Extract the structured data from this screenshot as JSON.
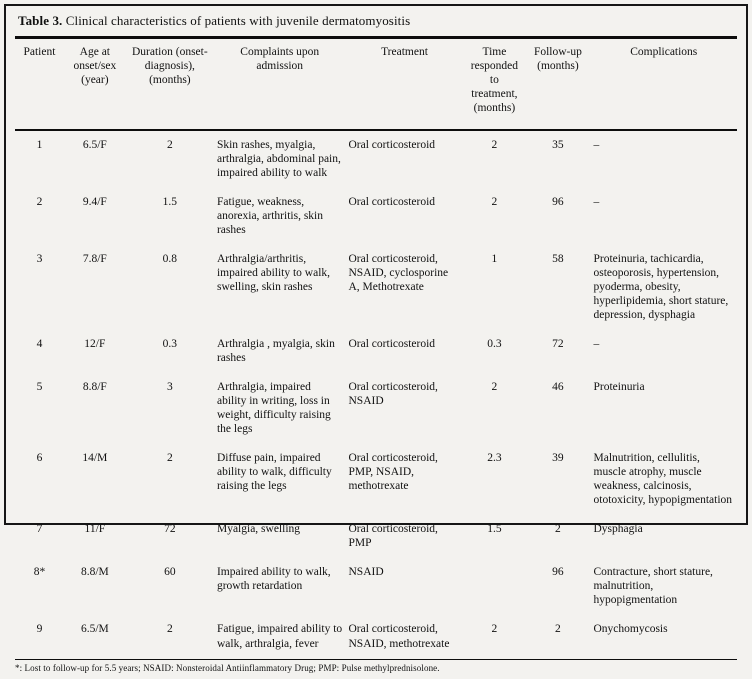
{
  "table": {
    "title_label": "Table 3.",
    "title_text": " Clinical characteristics of patients with juvenile dermatomyositis",
    "columns": [
      "Patient",
      "Age at onset/sex (year)",
      "Duration (onset-diagnosis), (months)",
      "Complaints upon admission",
      "Treatment",
      "Time responded to treatment, (months)",
      "Follow-up (months)",
      "Complications"
    ],
    "rows": [
      [
        "1",
        "6.5/F",
        "2",
        "Skin rashes, myalgia, arthralgia, abdominal pain, impaired ability to walk",
        "Oral corticosteroid",
        "2",
        "35",
        "–"
      ],
      [
        "2",
        "9.4/F",
        "1.5",
        "Fatigue, weakness, anorexia, arthritis, skin rashes",
        "Oral corticosteroid",
        "2",
        "96",
        "–"
      ],
      [
        "3",
        "7.8/F",
        "0.8",
        "Arthralgia/arthritis, impaired ability to walk, swelling, skin rashes",
        "Oral corticosteroid, NSAID, cyclosporine A, Methotrexate",
        "1",
        "58",
        "Proteinuria, tachicardia, osteoporosis, hypertension, pyoderma, obesity, hyperlipidemia, short stature, depression, dysphagia"
      ],
      [
        "4",
        "12/F",
        "0.3",
        "Arthralgia , myalgia, skin rashes",
        "Oral corticosteroid",
        "0.3",
        "72",
        "–"
      ],
      [
        "5",
        "8.8/F",
        "3",
        "Arthralgia, impaired ability in writing, loss in weight, difficulty raising the legs",
        "Oral corticosteroid, NSAID",
        "2",
        "46",
        "Proteinuria"
      ],
      [
        "6",
        "14/M",
        "2",
        "Diffuse pain, impaired ability to walk, difficulty raising the legs",
        "Oral corticosteroid, PMP, NSAID, methotrexate",
        "2.3",
        "39",
        "Malnutrition, cellulitis, muscle atrophy, muscle weakness, calcinosis, ototoxicity, hypopigmentation"
      ],
      [
        "7",
        "11/F",
        "72",
        "Myalgia, swelling",
        "Oral corticosteroid, PMP",
        "1.5",
        "2",
        "Dysphagia"
      ],
      [
        "8*",
        "8.8/M",
        "60",
        "Impaired ability to walk, growth retardation",
        "NSAID",
        "",
        "96",
        "Contracture, short stature, malnutrition, hypopigmentation"
      ],
      [
        "9",
        "6.5/M",
        "2",
        "Fatigue, impaired ability to walk, arthralgia, fever",
        "Oral corticosteroid, NSAID, methotrexate",
        "2",
        "2",
        "Onychomycosis"
      ]
    ],
    "footnote": "*: Lost to follow-up for 5.5 years; NSAID: Nonsteroidal Antiinflammatory Drug; PMP: Pulse methylprednisolone.",
    "colors": {
      "border": "#161616",
      "background": "#f3f2ef",
      "text": "#111111"
    }
  }
}
